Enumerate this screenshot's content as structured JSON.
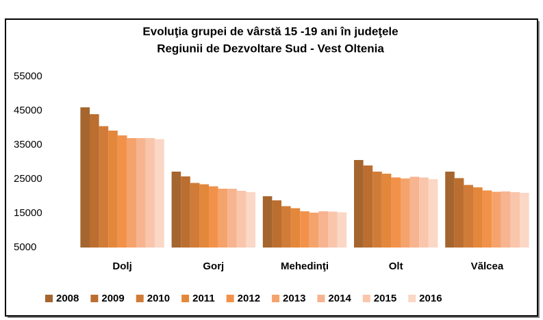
{
  "chart_data": {
    "type": "bar",
    "title": [
      "Evoluţia grupei de vârstă 15 -19 ani în judeţele",
      "Regiunii de Dezvoltare Sud - Vest Oltenia"
    ],
    "categories": [
      "Dolj",
      "Gorj",
      "Mehedinţi",
      "Olt",
      "Vălcea"
    ],
    "series": [
      {
        "name": "2008",
        "color": "#a5652e",
        "values": [
          46000,
          27200,
          20000,
          30600,
          27200
        ]
      },
      {
        "name": "2009",
        "color": "#bb6e30",
        "values": [
          44000,
          25800,
          18800,
          29000,
          25300
        ]
      },
      {
        "name": "2010",
        "color": "#d07c38",
        "values": [
          40500,
          23900,
          17100,
          27200,
          23300
        ]
      },
      {
        "name": "2011",
        "color": "#e3873b",
        "values": [
          39200,
          23500,
          16500,
          26600,
          22600
        ]
      },
      {
        "name": "2012",
        "color": "#f2924a",
        "values": [
          37800,
          22900,
          15600,
          25500,
          21700
        ]
      },
      {
        "name": "2013",
        "color": "#f5a36c",
        "values": [
          37000,
          22200,
          15200,
          25200,
          21300
        ]
      },
      {
        "name": "2014",
        "color": "#f7b490",
        "values": [
          37000,
          22200,
          15600,
          25700,
          21400
        ]
      },
      {
        "name": "2015",
        "color": "#f9c6ac",
        "values": [
          37000,
          21600,
          15500,
          25500,
          21200
        ]
      },
      {
        "name": "2016",
        "color": "#fbd7c6",
        "values": [
          36700,
          21200,
          15300,
          25000,
          21000
        ]
      }
    ],
    "ylim": [
      5000,
      55000
    ],
    "yticks": [
      5000,
      15000,
      25000,
      35000,
      45000,
      55000
    ],
    "grid": false,
    "legend": "bottom"
  }
}
